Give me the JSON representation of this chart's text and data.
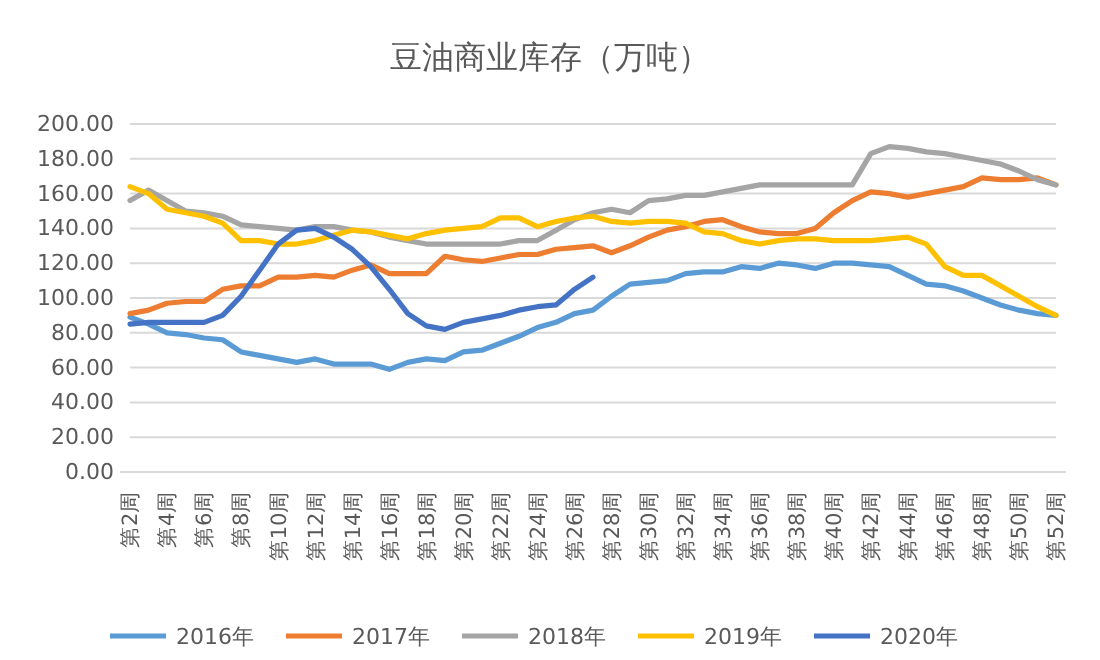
{
  "chart_data": {
    "type": "line",
    "title": "豆油商业库存（万吨）",
    "categories": [
      "第2周",
      null,
      "第4周",
      null,
      "第6周",
      null,
      "第8周",
      null,
      "第10周",
      null,
      "第12周",
      null,
      "第14周",
      null,
      "第16周",
      null,
      "第18周",
      null,
      "第20周",
      null,
      "第22周",
      null,
      "第24周",
      null,
      "第26周",
      null,
      "第28周",
      null,
      "第30周",
      null,
      "第32周",
      null,
      "第34周",
      null,
      "第36周",
      null,
      "第38周",
      null,
      "第40周",
      null,
      "第42周",
      null,
      "第44周",
      null,
      "第46周",
      null,
      "第48周",
      null,
      "第50周",
      null,
      "第52周"
    ],
    "series": [
      {
        "name": "2016年",
        "color": "#5b9bd5",
        "values": [
          89,
          85,
          80,
          79,
          77,
          76,
          69,
          67,
          65,
          63,
          65,
          62,
          62,
          62,
          59,
          63,
          65,
          64,
          69,
          70,
          74,
          78,
          83,
          86,
          91,
          93,
          101,
          108,
          109,
          110,
          114,
          115,
          115,
          118,
          117,
          120,
          119,
          117,
          120,
          120,
          119,
          118,
          113,
          108,
          107,
          104,
          100,
          96,
          93,
          91,
          90
        ]
      },
      {
        "name": "2017年",
        "color": "#ed7d31",
        "values": [
          91,
          93,
          97,
          98,
          98,
          105,
          107,
          107,
          112,
          112,
          113,
          112,
          116,
          119,
          114,
          114,
          114,
          124,
          122,
          121,
          123,
          125,
          125,
          128,
          129,
          130,
          126,
          130,
          135,
          139,
          141,
          144,
          145,
          141,
          138,
          137,
          137,
          140,
          149,
          156,
          161,
          160,
          158,
          160,
          162,
          164,
          169,
          168,
          168,
          169,
          165
        ]
      },
      {
        "name": "2018年",
        "color": "#a5a5a5",
        "values": [
          156,
          162,
          156,
          150,
          149,
          147,
          142,
          141,
          140,
          139,
          141,
          141,
          139,
          138,
          135,
          133,
          131,
          131,
          131,
          131,
          131,
          133,
          133,
          139,
          145,
          149,
          151,
          149,
          156,
          157,
          159,
          159,
          161,
          163,
          165,
          165,
          165,
          165,
          165,
          165,
          183,
          187,
          186,
          184,
          183,
          181,
          179,
          177,
          173,
          168,
          165
        ]
      },
      {
        "name": "2019年",
        "color": "#ffc000",
        "values": [
          164,
          160,
          151,
          149,
          147,
          143,
          133,
          133,
          131,
          131,
          133,
          136,
          139,
          138,
          136,
          134,
          137,
          139,
          140,
          141,
          146,
          146,
          141,
          144,
          146,
          147,
          144,
          143,
          144,
          144,
          143,
          138,
          137,
          133,
          131,
          133,
          134,
          134,
          133,
          133,
          133,
          134,
          135,
          131,
          118,
          113,
          113,
          107,
          101,
          95,
          90
        ]
      },
      {
        "name": "2020年",
        "color": "#4472c4",
        "values": [
          85,
          86,
          86,
          86,
          86,
          90,
          101,
          116,
          131,
          139,
          140,
          135,
          128,
          118,
          105,
          91,
          84,
          82,
          86,
          88,
          90,
          93,
          95,
          96,
          105,
          112,
          null,
          null,
          null,
          null,
          null,
          null,
          null,
          null,
          null,
          null,
          null,
          null,
          null,
          null,
          null,
          null,
          null,
          null,
          null,
          null,
          null,
          null,
          null,
          null,
          null
        ]
      }
    ],
    "ylim": [
      0,
      200
    ],
    "yticks": [
      {
        "value": 0,
        "label": "0.00"
      },
      {
        "value": 20,
        "label": "20.00"
      },
      {
        "value": 40,
        "label": "40.00"
      },
      {
        "value": 60,
        "label": "60.00"
      },
      {
        "value": 80,
        "label": "80.00"
      },
      {
        "value": 100,
        "label": "100.00"
      },
      {
        "value": 120,
        "label": "120.00"
      },
      {
        "value": 140,
        "label": "140.00"
      },
      {
        "value": 160,
        "label": "160.00"
      },
      {
        "value": 180,
        "label": "180.00"
      },
      {
        "value": 200,
        "label": "200.00"
      }
    ],
    "grid": "y",
    "legend": "bottom",
    "marker": "none",
    "line_style": "solid"
  }
}
